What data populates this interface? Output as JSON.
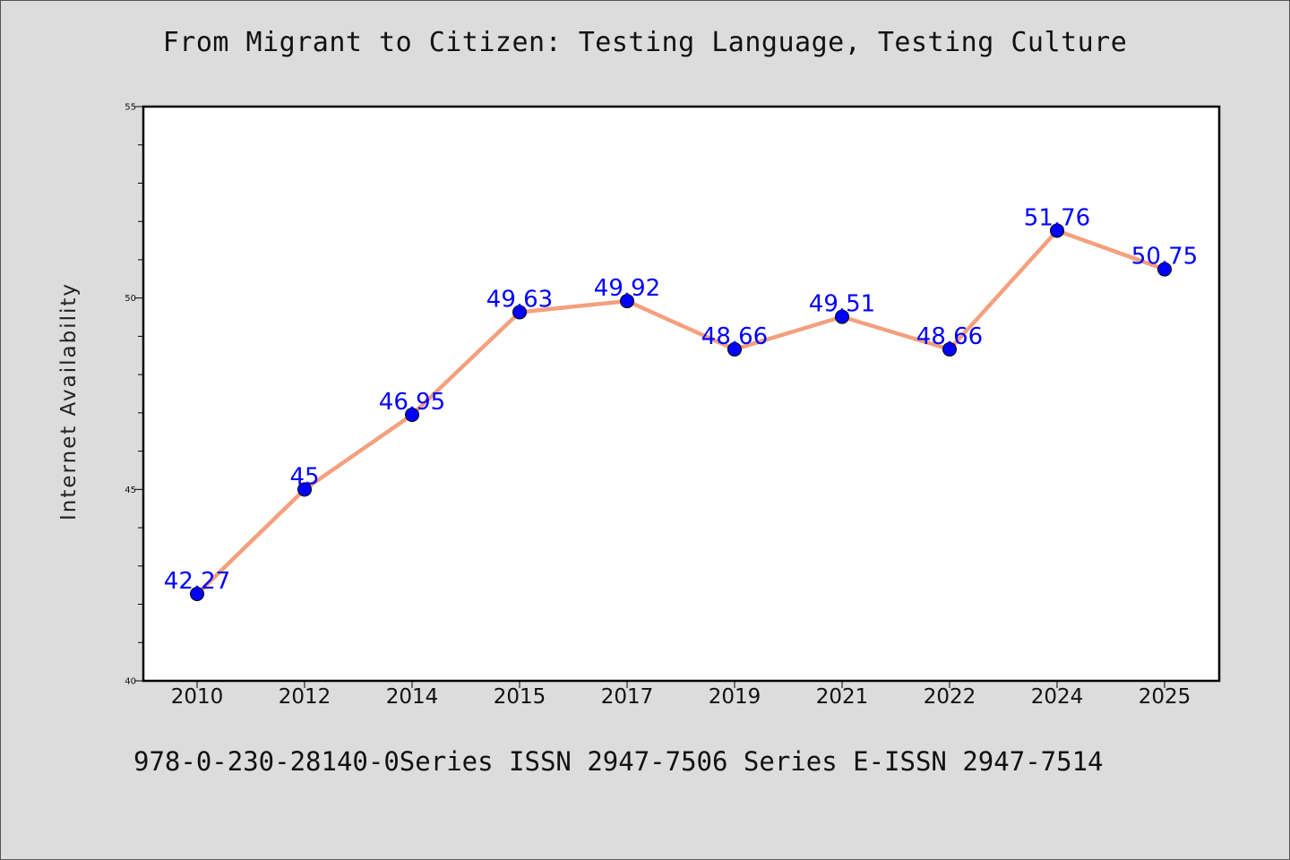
{
  "chart_data": {
    "type": "line",
    "title": "From Migrant to Citizen: Testing Language, Testing Culture",
    "xlabel": "",
    "ylabel": "Internet Availability",
    "categories": [
      "2010",
      "2012",
      "2014",
      "2015",
      "2017",
      "2019",
      "2021",
      "2022",
      "2024",
      "2025"
    ],
    "values": [
      42.27,
      45,
      46.95,
      49.63,
      49.92,
      48.66,
      49.51,
      48.66,
      51.76,
      50.75
    ],
    "data_labels": [
      "42.27",
      "45",
      "46.95",
      "49.63",
      "49.92",
      "48.66",
      "49.51",
      "48.66",
      "51.76",
      "50.75"
    ],
    "ylim": [
      40,
      55
    ],
    "y_major_ticks": [
      40,
      45,
      50,
      55
    ],
    "y_minor_step": 1,
    "grid": false,
    "legend": "none",
    "line_color": "#f4a07e",
    "marker_color": "#0000ff",
    "label_color": "#0000ff"
  },
  "footer": {
    "isbn_text": "978-0-230-28140-0Series ISSN 2947-7506 Series E-ISSN 2947-7514"
  }
}
